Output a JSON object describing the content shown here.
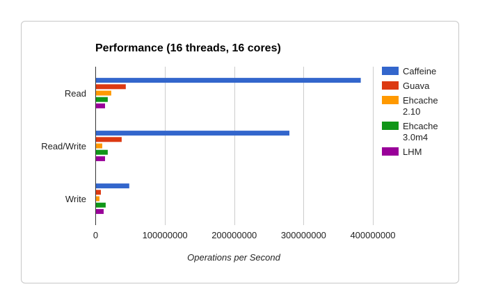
{
  "chart_data": {
    "type": "bar",
    "orientation": "horizontal",
    "title": "Performance (16 threads, 16 cores)",
    "xlabel": "Operations per Second",
    "ylabel": "",
    "categories": [
      "Read",
      "Read/Write",
      "Write"
    ],
    "xlim": [
      0,
      400000000
    ],
    "xticks": [
      "0",
      "100000000",
      "200000000",
      "300000000",
      "400000000"
    ],
    "tick_values": [
      0,
      100000000,
      200000000,
      300000000,
      400000000
    ],
    "grid": true,
    "legend_position": "right",
    "series": [
      {
        "name": "Caffeine",
        "color": "#3366cc",
        "values": [
          382000000,
          279000000,
          48000000
        ]
      },
      {
        "name": "Guava",
        "color": "#dc3912",
        "values": [
          43000000,
          37000000,
          7000000
        ]
      },
      {
        "name": "Ehcache 2.10",
        "color": "#ff9900",
        "values": [
          22000000,
          9000000,
          5000000
        ]
      },
      {
        "name": "Ehcache 3.0m4",
        "color": "#109618",
        "values": [
          17000000,
          17000000,
          14000000
        ]
      },
      {
        "name": "LHM",
        "color": "#990099",
        "values": [
          13000000,
          13000000,
          11000000
        ]
      }
    ]
  }
}
